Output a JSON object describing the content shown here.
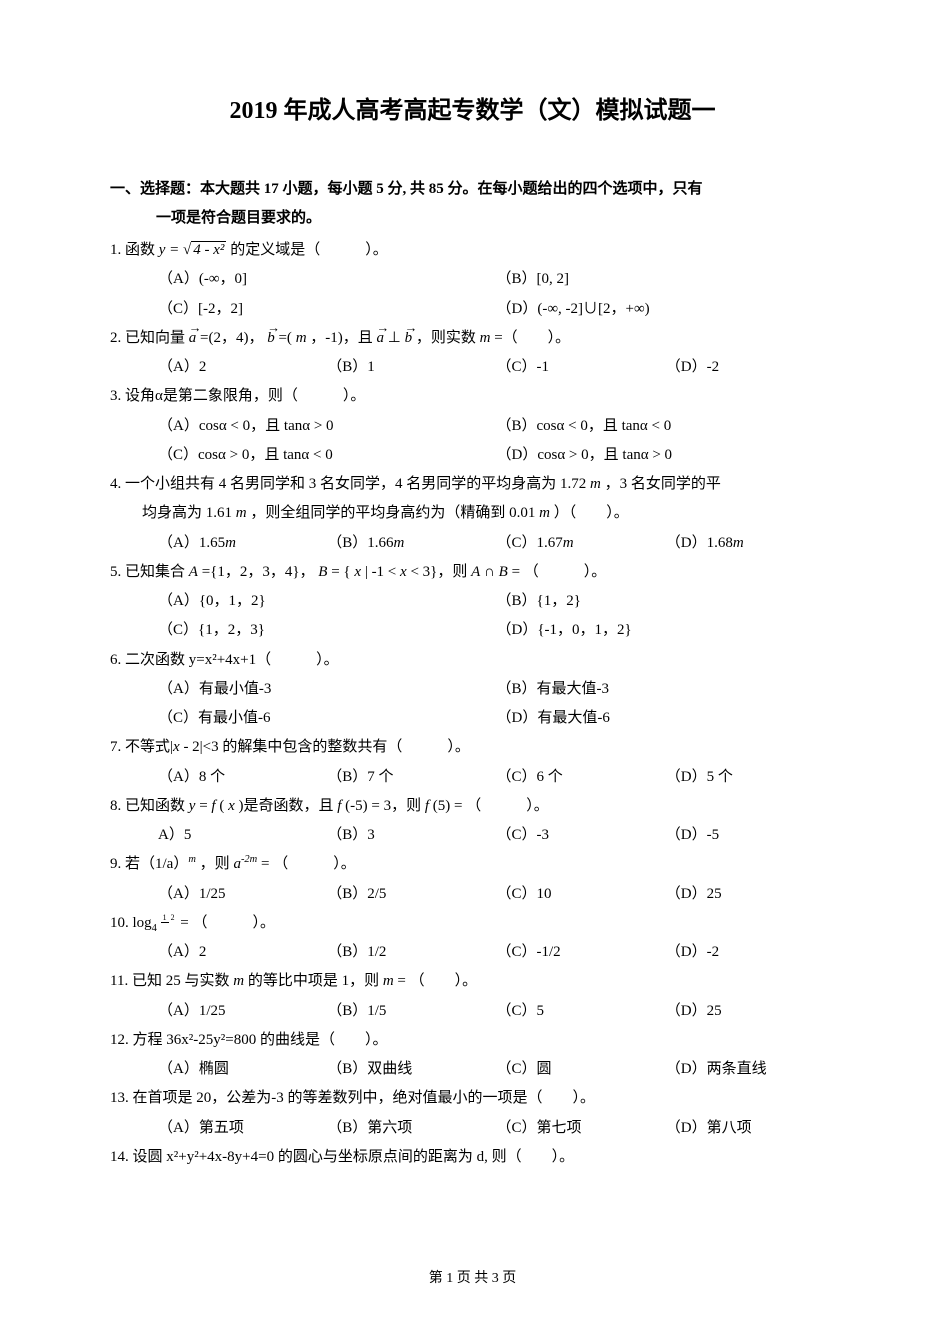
{
  "title": "2019 年成人高考高起专数学（文）模拟试题一",
  "section1_line1": "一、选择题：本大题共 17 小题，每小题 5 分, 共 85 分。在每小题给出的四个选项中，只有",
  "section1_line2": "一项是符合题目要求的。",
  "q1": {
    "num": "1.",
    "text_pre": "函数",
    "text_post": "的定义域是（　　　）。",
    "optA": "（A）(-∞，0]",
    "optB": "（B）[0, 2]",
    "optC": "（C）[-2，2]",
    "optD": "（D）(-∞, -2]∪[2，+∞)"
  },
  "q2": {
    "num": "2.",
    "text_pre": "已知向量",
    "text_mid1": "=(2，4)，",
    "text_mid2": "=(",
    "m": "m",
    "text_mid3": "，-1)，且",
    "text_mid4": "⊥",
    "text_post": "，则实数",
    "m2": "m",
    "text_end": "=（　　）。",
    "optA": "（A）2",
    "optB": "（B）1",
    "optC": "（C）-1",
    "optD": "（D）-2"
  },
  "q3": {
    "num": "3.",
    "text": "设角α是第二象限角，则（　　　）。",
    "optA_pre": "（A）cosα < 0，且 tanα > 0",
    "optB_pre": "（B）cosα < 0，且 tanα < 0",
    "optC_pre": "（C）cosα > 0，且 tanα < 0",
    "optD_pre": "（D）cosα > 0，且 tanα > 0"
  },
  "q4": {
    "num": "4.",
    "line1": "一个小组共有 4 名男同学和 3 名女同学，4 名男同学的平均身高为 1.72",
    "m1": "m",
    "line1_end": "，3 名女同学的平",
    "line2": "均身高为 1.61",
    "m2": "m",
    "line2_mid": "，则全组同学的平均身高约为（精确到 0.01",
    "m3": "m",
    "line2_end": "）（　　）。",
    "optA": "（A）1.65",
    "optB": "（B）1.66",
    "optC": "（C）1.67",
    "optD": "（D）1.68",
    "opt_unit": "m"
  },
  "q5": {
    "num": "5.",
    "text_pre": "已知集合",
    "A": "A",
    "text_mid1": "={1，2，3，4}，",
    "B": "B",
    "text_mid2": " = {",
    "x": "x",
    "text_mid3": " | -1 < ",
    "x2": "x",
    "text_mid4": " < 3}，则",
    "A2": "A",
    "text_mid5": "∩",
    "B2": "B",
    "text_end": " = （　　　）。",
    "optA": "（A）{0，1，2}",
    "optB": "（B）{1，2}",
    "optC": "（C）{1，2，3}",
    "optD": "（D）{-1，0，1，2}"
  },
  "q6": {
    "num": "6.",
    "text": "二次函数 y=x²+4x+1（　　　）。",
    "optA": "（A）有最小值-3",
    "optB": "（B）有最大值-3",
    "optC": "（C）有最小值-6",
    "optD": "（D）有最大值-6"
  },
  "q7": {
    "num": "7.",
    "text_pre": "不等式|",
    "x": "x",
    "text_post": " - 2|<3 的解集中包含的整数共有（　　　）。",
    "optA": "（A）8 个",
    "optB": "（B）7 个",
    "optC": "（C）6 个",
    "optD": "（D）5 个"
  },
  "q8": {
    "num": "8.",
    "text_pre": "已知函数",
    "y": "y",
    "text_mid1": " = ",
    "f": "f",
    "text_mid2": "(",
    "x": "x",
    "text_mid3": ")是奇函数，且",
    "f2": "f",
    "text_mid4": "(-5) = 3，则",
    "f3": "f",
    "text_end": "(5) = （　　　）。",
    "optA": "A）5",
    "optB": "（B）3",
    "optC": "（C）-3",
    "optD": "（D）-5"
  },
  "q9": {
    "num": "9.",
    "text_pre": "若（1/a）",
    "exp": "m",
    "text_mid": "，则",
    "a": "a",
    "exp2": "-2m",
    "text_end": " = （　　　）。",
    "optA": "（A）1/25",
    "optB": "（B）2/5",
    "optC": "（C）10",
    "optD": "（D）25"
  },
  "q10": {
    "num": "10.",
    "text_pre": "log",
    "base": "4",
    "frac_num": "1",
    "frac_den": "2",
    "text_end": " = （　　　）。",
    "optA": "（A）2",
    "optB": "（B）1/2",
    "optC": "（C）-1/2",
    "optD": "（D）-2"
  },
  "q11": {
    "num": "11.",
    "text_pre": "已知 25 与实数",
    "m": "m",
    "text_mid": "的等比中项是 1，则",
    "m2": "m",
    "text_end": " = （　　）。",
    "optA": "（A）1/25",
    "optB": "（B）1/5",
    "optC": "（C）5",
    "optD": "（D）25"
  },
  "q12": {
    "num": "12.",
    "text": "方程 36x²-25y²=800 的曲线是（　　）。",
    "optA": "（A）椭圆",
    "optB": "（B）双曲线",
    "optC": "（C）圆",
    "optD": "（D）两条直线"
  },
  "q13": {
    "num": "13.",
    "text": "在首项是 20，公差为-3 的等差数列中，绝对值最小的一项是（　　）。",
    "optA": "（A）第五项",
    "optB": "（B）第六项",
    "optC": "（C）第七项",
    "optD": "（D）第八项"
  },
  "q14": {
    "num": "14.",
    "text": "设圆 x²+y²+4x-8y+4=0 的圆心与坐标原点间的距离为 d, 则（　　）。"
  },
  "footer": "第 1 页 共 3 页"
}
